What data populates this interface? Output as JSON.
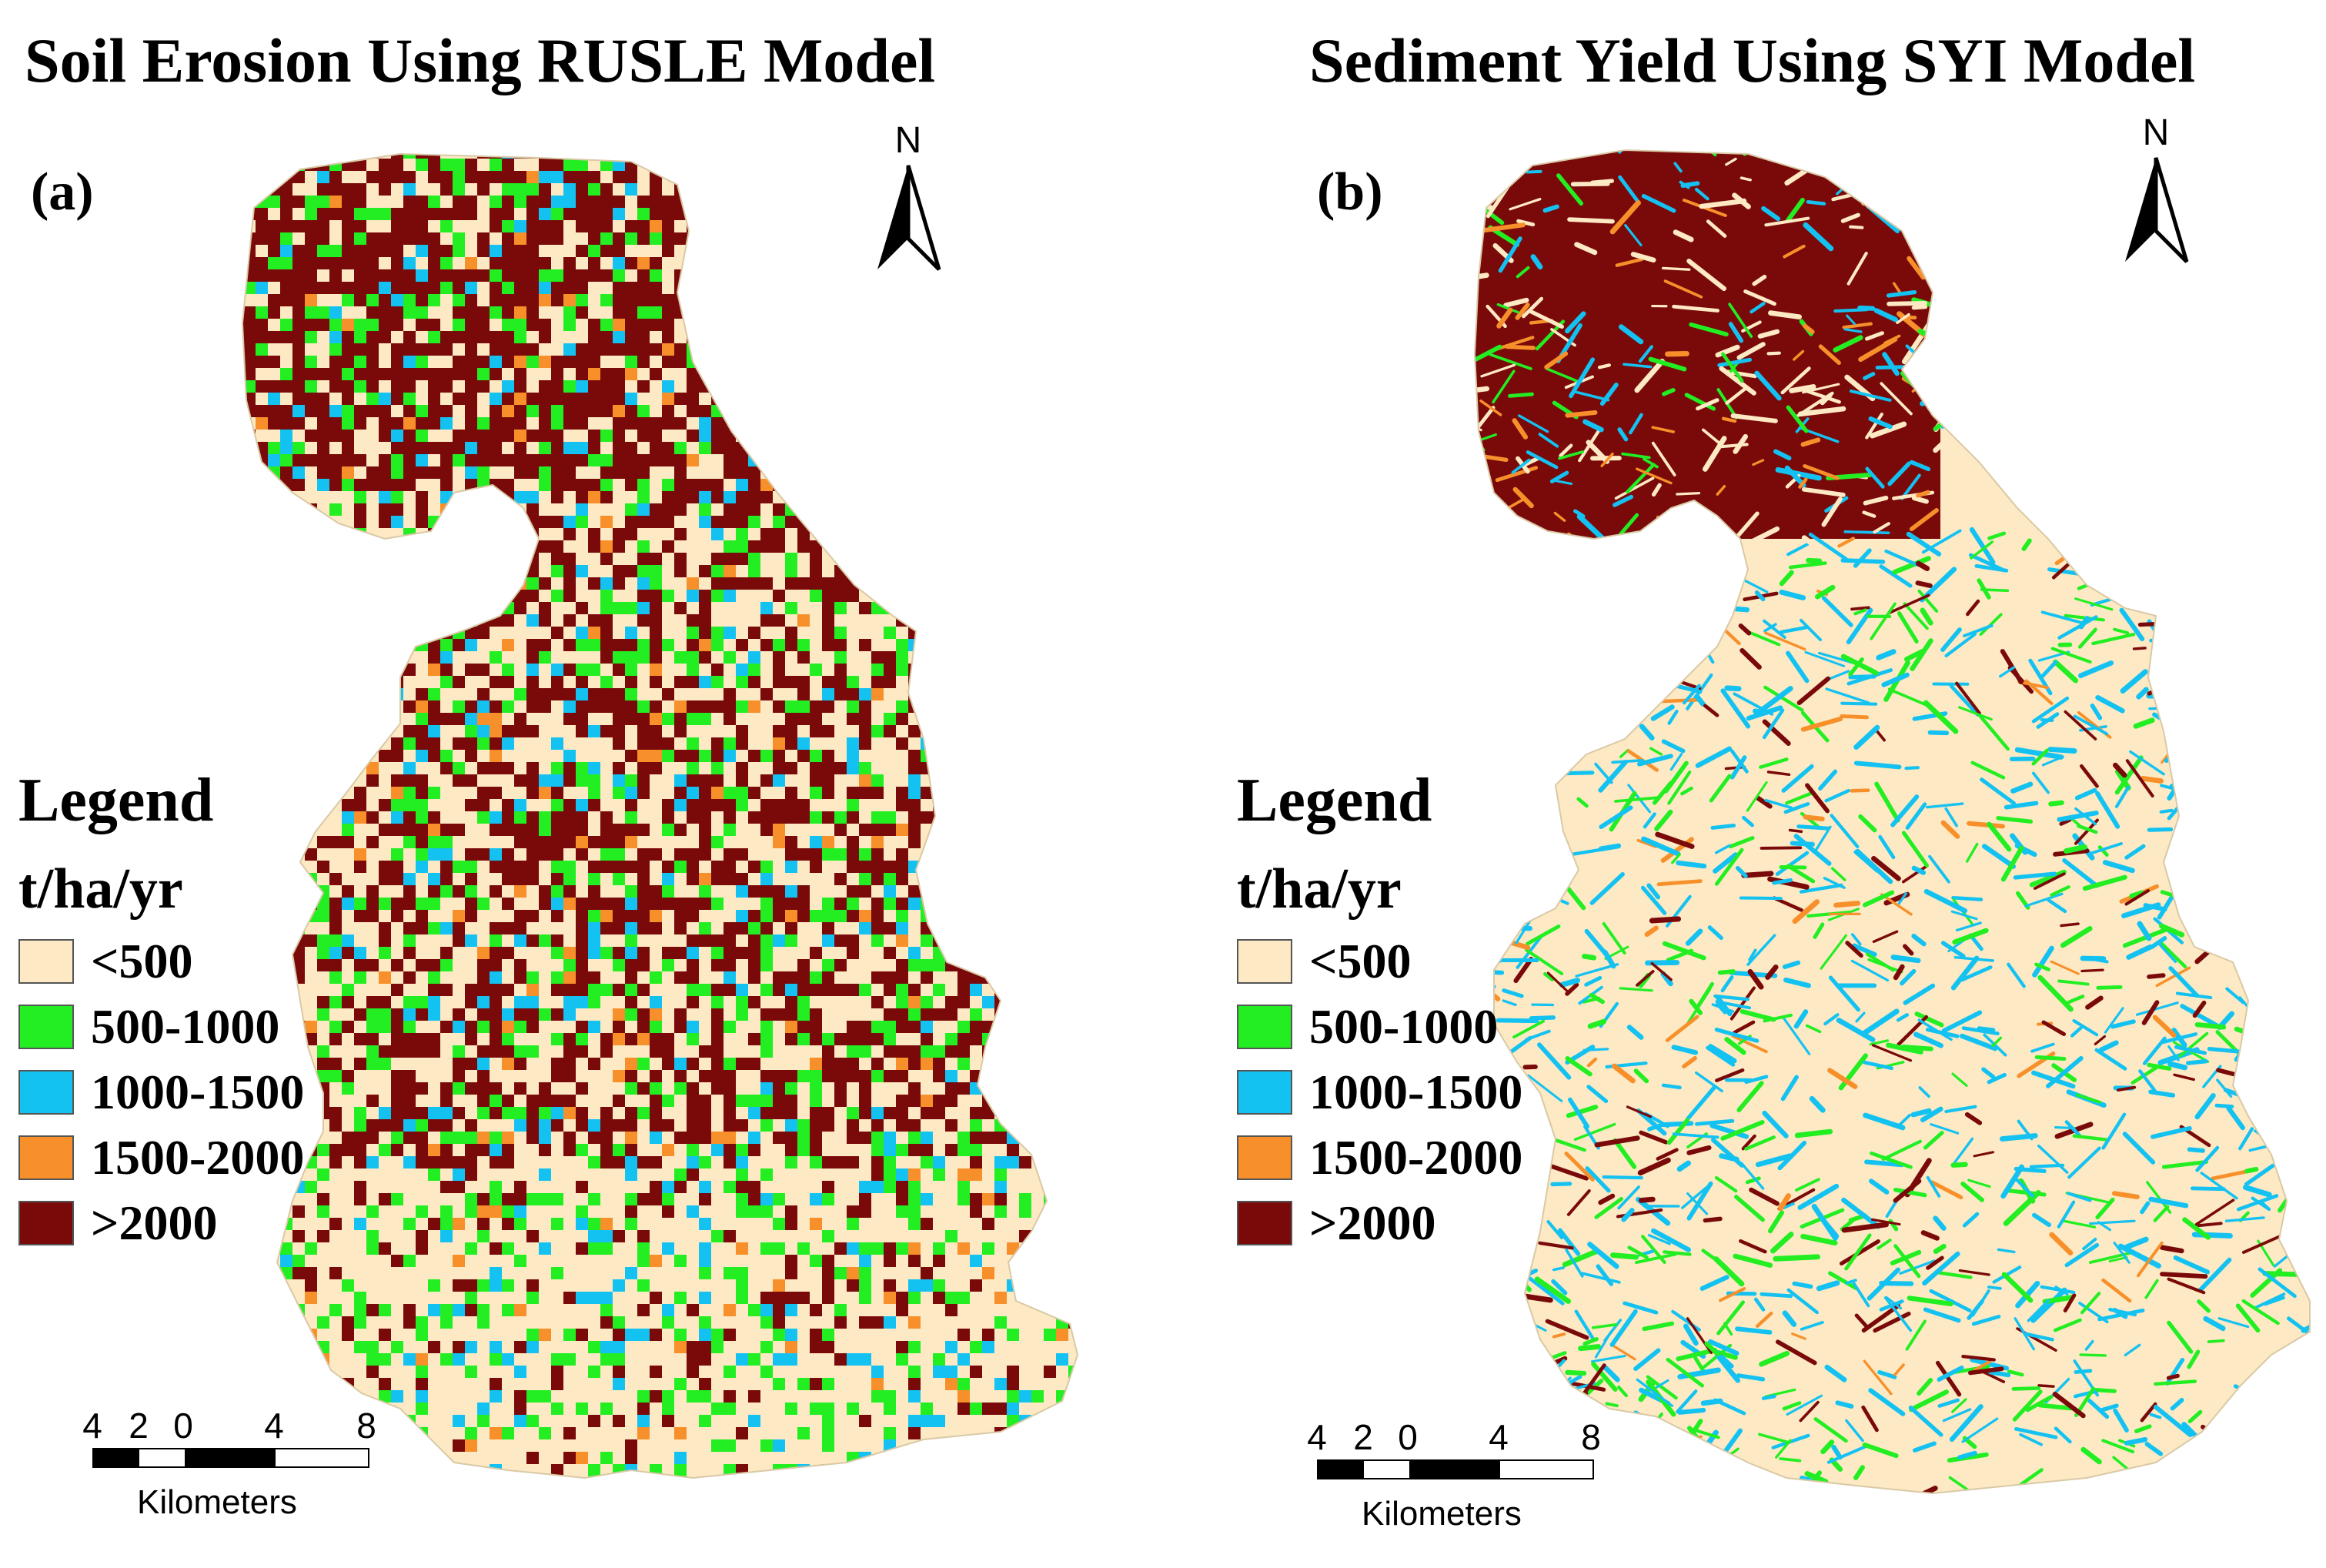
{
  "colors": {
    "class_lt500": "#fde9c3",
    "class_500_1000": "#22ee22",
    "class_1000_1500": "#14c2f2",
    "class_1500_2000": "#f7902a",
    "class_gt2000": "#7a0a0a"
  },
  "panels": [
    {
      "title": "Soil Erosion Using RUSLE Model",
      "label": "(a)",
      "north_label": "N",
      "legend": {
        "title": "Legend",
        "unit": "t/ha/yr",
        "items": [
          {
            "label": "<500",
            "color": "#fde9c3"
          },
          {
            "label": "500-1000",
            "color": "#22ee22"
          },
          {
            "label": "1000-1500",
            "color": "#14c2f2"
          },
          {
            "label": "1500-2000",
            "color": "#f7902a"
          },
          {
            "label": ">2000",
            "color": "#7a0a0a"
          }
        ]
      },
      "scalebar": {
        "ticks": [
          "4",
          "2",
          "0",
          "4",
          "8"
        ],
        "unit": "Kilometers"
      }
    },
    {
      "title": "Sediment Yield Using SYI Model",
      "label": "(b)",
      "north_label": "N",
      "legend": {
        "title": "Legend",
        "unit": "t/ha/yr",
        "items": [
          {
            "label": "<500",
            "color": "#fde9c3"
          },
          {
            "label": "500-1000",
            "color": "#22ee22"
          },
          {
            "label": "1000-1500",
            "color": "#14c2f2"
          },
          {
            "label": "1500-2000",
            "color": "#f7902a"
          },
          {
            "label": ">2000",
            "color": "#7a0a0a"
          }
        ]
      },
      "scalebar": {
        "ticks": [
          "4",
          "2",
          "0",
          "4",
          "8"
        ],
        "unit": "Kilometers"
      }
    }
  ]
}
